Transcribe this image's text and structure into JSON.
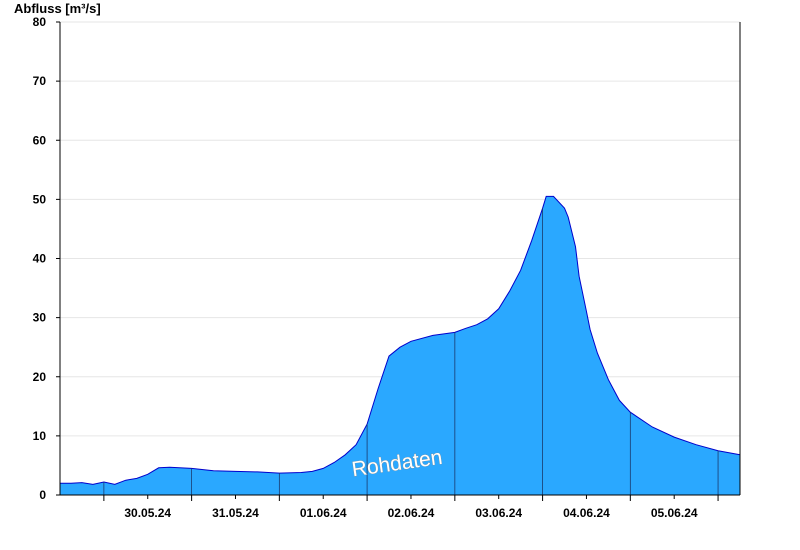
{
  "chart_data": {
    "type": "area",
    "title": "",
    "ylabel": "Abfluss [m³/s]",
    "xlabel": "",
    "ylim": [
      0,
      80
    ],
    "yticks": [
      0,
      10,
      20,
      30,
      40,
      50,
      60,
      70,
      80
    ],
    "xlim": [
      "29.05.24 12:00",
      "06.06.24 06:00"
    ],
    "day_boundaries": [
      "30.05.24 00:00",
      "31.05.24 00:00",
      "01.06.24 00:00",
      "02.06.24 00:00",
      "03.06.24 00:00",
      "04.06.24 00:00",
      "05.06.24 00:00",
      "06.06.24 00:00"
    ],
    "x_tick_labels": [
      "30.05.24",
      "31.05.24",
      "01.06.24",
      "02.06.24",
      "03.06.24",
      "04.06.24",
      "05.06.24"
    ],
    "grid": true,
    "watermark": "Rohdaten",
    "colors": {
      "fill": "#2aa8ff",
      "outline": "#0000cc",
      "divider": "#1a3a6e",
      "grid": "#e6e6e6"
    },
    "series": [
      {
        "x": [
          "29.05.24 12:00",
          "29.05.24 15:00",
          "29.05.24 18:00",
          "29.05.24 21:00",
          "30.05.24 00:00",
          "30.05.24 03:00",
          "30.05.24 06:00",
          "30.05.24 09:00",
          "30.05.24 12:00",
          "30.05.24 15:00",
          "30.05.24 18:00",
          "31.05.24 00:00",
          "31.05.24 06:00",
          "31.05.24 12:00",
          "31.05.24 18:00",
          "01.06.24 00:00",
          "01.06.24 06:00",
          "01.06.24 09:00",
          "01.06.24 12:00",
          "01.06.24 15:00",
          "01.06.24 18:00",
          "01.06.24 21:00",
          "02.06.24 00:00",
          "02.06.24 03:00",
          "02.06.24 06:00",
          "02.06.24 09:00",
          "02.06.24 12:00",
          "02.06.24 18:00",
          "03.06.24 00:00",
          "03.06.24 03:00",
          "03.06.24 06:00",
          "03.06.24 09:00",
          "03.06.24 12:00",
          "03.06.24 15:00",
          "03.06.24 18:00",
          "03.06.24 21:00",
          "04.06.24 00:00",
          "04.06.24 01:00",
          "04.06.24 02:00",
          "04.06.24 03:00",
          "04.06.24 06:00",
          "04.06.24 07:00",
          "04.06.24 09:00",
          "04.06.24 10:00",
          "04.06.24 12:00",
          "04.06.24 13:00",
          "04.06.24 15:00",
          "04.06.24 18:00",
          "04.06.24 21:00",
          "05.06.24 00:00",
          "05.06.24 06:00",
          "05.06.24 12:00",
          "05.06.24 18:00",
          "06.06.24 00:00",
          "06.06.24 06:00"
        ],
        "y": [
          2.0,
          2.0,
          2.1,
          1.8,
          2.2,
          1.8,
          2.5,
          2.8,
          3.5,
          4.6,
          4.7,
          4.5,
          4.1,
          4.0,
          3.9,
          3.7,
          3.8,
          4.0,
          4.5,
          5.5,
          6.8,
          8.5,
          12.0,
          18.0,
          23.5,
          25.0,
          26.0,
          27.0,
          27.5,
          28.2,
          28.8,
          29.8,
          31.5,
          34.5,
          38.0,
          43.0,
          48.5,
          50.5,
          50.5,
          50.5,
          48.5,
          47.0,
          42.0,
          37.0,
          31.0,
          28.0,
          24.0,
          19.5,
          16.0,
          14.0,
          11.5,
          9.8,
          8.5,
          7.5,
          6.8
        ]
      }
    ]
  }
}
